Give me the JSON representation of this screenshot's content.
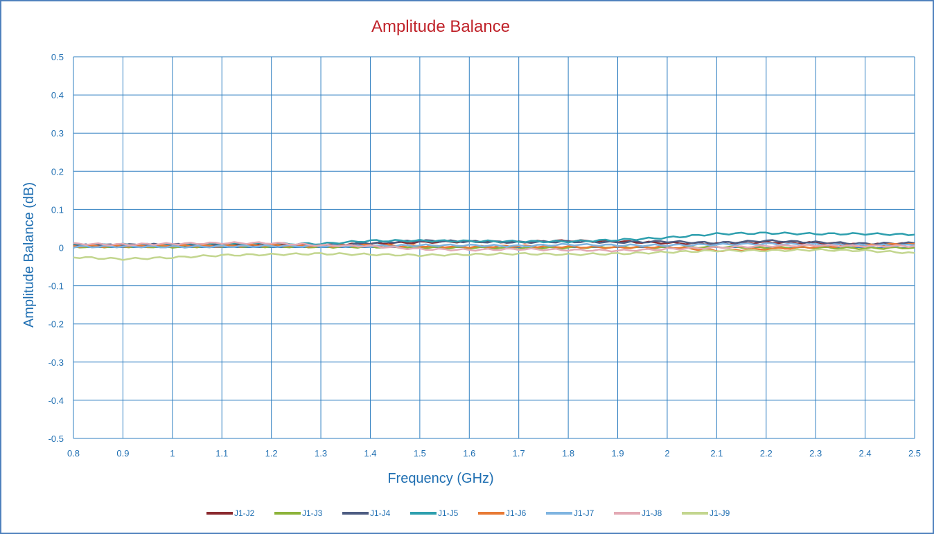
{
  "chart_data": {
    "type": "line",
    "title": "Amplitude Balance",
    "xlabel": "Frequency (GHz)",
    "ylabel": "Amplitude Balance (dB)",
    "xlim": [
      0.8,
      2.5
    ],
    "ylim": [
      -0.5,
      0.5
    ],
    "x_ticks": [
      "0.8",
      "0.9",
      "1",
      "1.1",
      "1.2",
      "1.3",
      "1.4",
      "1.5",
      "1.6",
      "1.7",
      "1.8",
      "1.9",
      "2",
      "2.1",
      "2.2",
      "2.3",
      "2.4",
      "2.5"
    ],
    "y_ticks": [
      "0.5",
      "0.4",
      "0.3",
      "0.2",
      "0.1",
      "0",
      "-0.1",
      "-0.2",
      "-0.3",
      "-0.4",
      "-0.5"
    ],
    "grid": true,
    "legend_position": "bottom",
    "x": [
      0.8,
      0.9,
      1.0,
      1.1,
      1.2,
      1.3,
      1.4,
      1.5,
      1.6,
      1.7,
      1.8,
      1.9,
      2.0,
      2.1,
      2.2,
      2.3,
      2.4,
      2.5
    ],
    "series": [
      {
        "name": "J1-J2",
        "color": "#8b2a2f",
        "values": [
          0.005,
          0.005,
          0.004,
          0.006,
          0.008,
          0.006,
          0.01,
          0.014,
          0.016,
          0.015,
          0.018,
          0.016,
          0.012,
          0.01,
          0.014,
          0.012,
          0.008,
          0.01
        ]
      },
      {
        "name": "J1-J3",
        "color": "#8db33a",
        "values": [
          0.002,
          0.003,
          0.002,
          0.004,
          0.003,
          0.002,
          0.002,
          0.0,
          0.0,
          -0.002,
          0.0,
          0.002,
          0.0,
          0.002,
          0.0,
          0.0,
          -0.002,
          0.0
        ]
      },
      {
        "name": "J1-J4",
        "color": "#4e5d82",
        "values": [
          0.006,
          0.007,
          0.008,
          0.006,
          0.004,
          0.006,
          0.012,
          0.018,
          0.016,
          0.014,
          0.016,
          0.014,
          0.016,
          0.012,
          0.018,
          0.014,
          0.01,
          0.012
        ]
      },
      {
        "name": "J1-J5",
        "color": "#2e9fae",
        "values": [
          0.008,
          0.008,
          0.008,
          0.009,
          0.01,
          0.01,
          0.018,
          0.018,
          0.017,
          0.016,
          0.016,
          0.02,
          0.026,
          0.036,
          0.038,
          0.036,
          0.036,
          0.034
        ]
      },
      {
        "name": "J1-J6",
        "color": "#e87a35",
        "values": [
          0.004,
          0.004,
          0.005,
          0.004,
          0.006,
          0.004,
          0.006,
          0.004,
          0.002,
          0.004,
          0.002,
          0.0,
          0.002,
          -0.008,
          -0.004,
          0.002,
          0.006,
          0.01
        ]
      },
      {
        "name": "J1-J7",
        "color": "#7fb4e0",
        "values": [
          0.002,
          0.003,
          0.002,
          0.003,
          0.004,
          0.004,
          0.004,
          0.006,
          0.006,
          0.004,
          0.008,
          0.006,
          0.006,
          0.008,
          0.01,
          0.008,
          0.006,
          0.006
        ]
      },
      {
        "name": "J1-J8",
        "color": "#e3a9b4",
        "values": [
          0.01,
          0.008,
          0.01,
          0.012,
          0.012,
          0.006,
          0.004,
          -0.004,
          -0.006,
          -0.004,
          -0.006,
          -0.008,
          -0.004,
          0.0,
          0.004,
          0.006,
          0.004,
          0.004
        ]
      },
      {
        "name": "J1-J9",
        "color": "#c3d68f",
        "values": [
          -0.025,
          -0.03,
          -0.026,
          -0.02,
          -0.018,
          -0.016,
          -0.018,
          -0.02,
          -0.018,
          -0.016,
          -0.018,
          -0.016,
          -0.012,
          -0.008,
          -0.008,
          -0.006,
          -0.008,
          -0.014
        ]
      }
    ]
  },
  "colors": {
    "title": "#c0232a",
    "axis_text": "#1f6fb2",
    "grid": "#2f7fc1",
    "frame": "#4f81bd"
  }
}
